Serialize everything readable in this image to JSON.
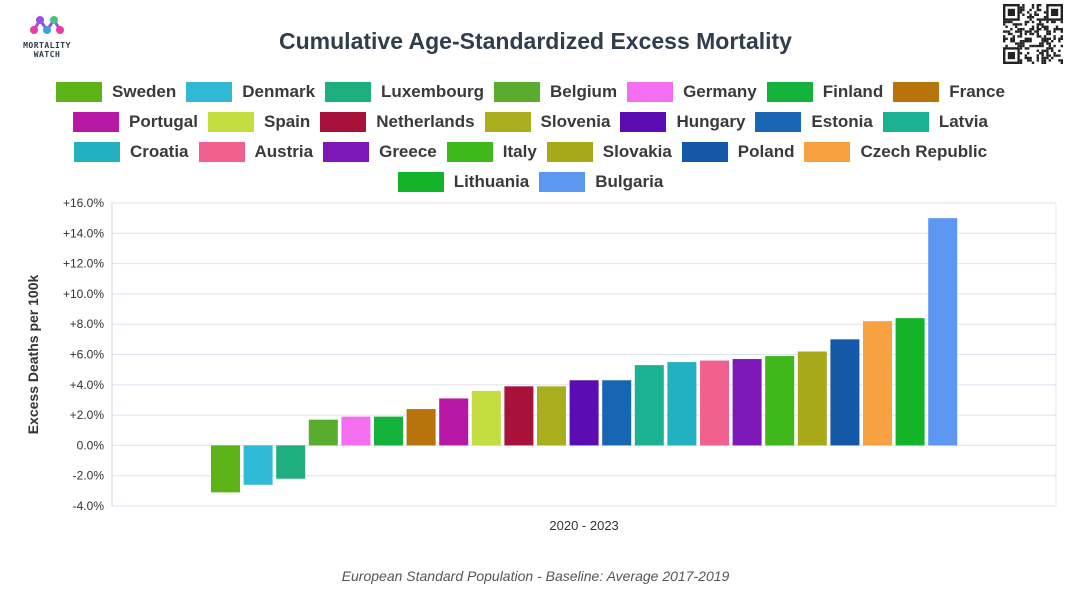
{
  "brand": {
    "logo_line1": "MORTALITY",
    "logo_line2": "WATCH",
    "logo_colors": [
      "#e93ca0",
      "#9b4ee6",
      "#3aa0e6",
      "#46c281"
    ]
  },
  "chart_data": {
    "type": "bar",
    "title": "Cumulative Age-Standardized Excess Mortality",
    "xlabel": "",
    "ylabel": "Excess Deaths per 100k",
    "x_tick": "2020 - 2023",
    "ylim": [
      -4,
      16
    ],
    "yticks": [
      "-4.0%",
      "-2.0%",
      "0.0%",
      "+2.0%",
      "+4.0%",
      "+6.0%",
      "+8.0%",
      "+10.0%",
      "+12.0%",
      "+14.0%",
      "+16.0%"
    ],
    "ytick_values": [
      -4,
      -2,
      0,
      2,
      4,
      6,
      8,
      10,
      12,
      14,
      16
    ],
    "grid": true,
    "legend_position": "top",
    "series": [
      {
        "name": "Sweden",
        "value": -3.1,
        "color": "#5bb318"
      },
      {
        "name": "Denmark",
        "value": -2.6,
        "color": "#2fb9d6"
      },
      {
        "name": "Luxembourg",
        "value": -2.2,
        "color": "#1fae7d"
      },
      {
        "name": "Belgium",
        "value": 1.7,
        "color": "#5aac2e"
      },
      {
        "name": "Germany",
        "value": 1.9,
        "color": "#f36ef0"
      },
      {
        "name": "Finland",
        "value": 1.9,
        "color": "#13b23a"
      },
      {
        "name": "France",
        "value": 2.4,
        "color": "#b8730a"
      },
      {
        "name": "Portugal",
        "value": 3.1,
        "color": "#b817a6"
      },
      {
        "name": "Spain",
        "value": 3.6,
        "color": "#c3dc40"
      },
      {
        "name": "Netherlands",
        "value": 3.9,
        "color": "#a8123a"
      },
      {
        "name": "Slovenia",
        "value": 3.9,
        "color": "#a9ae1c"
      },
      {
        "name": "Hungary",
        "value": 4.3,
        "color": "#5b0cb3"
      },
      {
        "name": "Estonia",
        "value": 4.3,
        "color": "#1766b3"
      },
      {
        "name": "Latvia",
        "value": 5.3,
        "color": "#1bb291"
      },
      {
        "name": "Croatia",
        "value": 5.5,
        "color": "#21b1c0"
      },
      {
        "name": "Austria",
        "value": 5.6,
        "color": "#f2608f"
      },
      {
        "name": "Greece",
        "value": 5.7,
        "color": "#7d17b8"
      },
      {
        "name": "Italy",
        "value": 5.9,
        "color": "#3fb81c"
      },
      {
        "name": "Slovakia",
        "value": 6.2,
        "color": "#a8a918"
      },
      {
        "name": "Poland",
        "value": 7.0,
        "color": "#1458a8"
      },
      {
        "name": "Czech Republic",
        "value": 8.2,
        "color": "#f7a141"
      },
      {
        "name": "Lithuania",
        "value": 8.4,
        "color": "#14b428"
      },
      {
        "name": "Bulgaria",
        "value": 15.0,
        "color": "#5c98f2"
      }
    ],
    "footnote": "European Standard Population - Baseline: Average 2017-2019"
  }
}
